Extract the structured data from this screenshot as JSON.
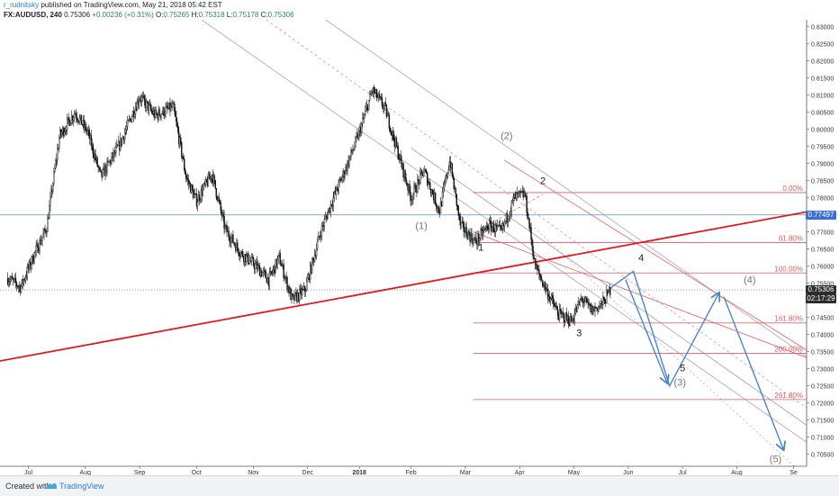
{
  "header": {
    "user": "r_rudnitsky",
    "published": "published on TradingView.com, May 21, 2018 05:42 EST",
    "symbol": "FX:AUDUSD, 240",
    "last": "0.75306",
    "change": "+0.00236 (+0.31%)",
    "o_label": "O:",
    "o": "0.75265",
    "h_label": "H:",
    "h": "0.75318",
    "l_label": "L:",
    "l": "0.75178",
    "c_label": "C:",
    "c": "0.75306"
  },
  "footer": {
    "created_with": "Created with",
    "brand": "TradingView"
  },
  "colors": {
    "candle": "#111111",
    "trend_red": "#e0191e",
    "fib": "#e05a66",
    "channel_gray": "#a9a9a9",
    "channel_dashed": "#c0a0a8",
    "wave_arrow": "#4a86c8",
    "blue_line": "#5b8fd0",
    "tag_blue": "#3b6fd6",
    "tag_dark": "#2d2d2d"
  },
  "chart_data": {
    "type": "candlestick",
    "x_axis_labels": [
      "Jul",
      "Aug",
      "Sep",
      "Oct",
      "Nov",
      "Dec",
      "2018",
      "Feb",
      "Mar",
      "Apr",
      "May",
      "Jun",
      "Jul",
      "Aug",
      "Se"
    ],
    "y_axis_labels": [
      "0.83000",
      "0.82500",
      "0.82000",
      "0.81500",
      "0.81000",
      "0.80500",
      "0.80000",
      "0.79500",
      "0.79000",
      "0.78500",
      "0.78000",
      "0.77500",
      "0.77000",
      "0.76500",
      "0.76000",
      "0.75500",
      "0.75000",
      "0.74500",
      "0.74000",
      "0.73500",
      "0.73000",
      "0.72500",
      "0.72000",
      "0.71500",
      "0.71000",
      "0.70500"
    ],
    "ylim": [
      0.7015,
      0.832
    ],
    "price_path": [
      {
        "t": 0.0,
        "p": 0.7565
      },
      {
        "t": 0.5,
        "p": 0.7538
      },
      {
        "t": 1.0,
        "p": 0.763
      },
      {
        "t": 1.5,
        "p": 0.771
      },
      {
        "t": 2.0,
        "p": 0.798
      },
      {
        "t": 2.6,
        "p": 0.805
      },
      {
        "t": 3.1,
        "p": 0.799
      },
      {
        "t": 3.6,
        "p": 0.786
      },
      {
        "t": 4.3,
        "p": 0.795
      },
      {
        "t": 5.1,
        "p": 0.8095
      },
      {
        "t": 5.7,
        "p": 0.804
      },
      {
        "t": 6.4,
        "p": 0.8065
      },
      {
        "t": 6.9,
        "p": 0.786
      },
      {
        "t": 7.3,
        "p": 0.779
      },
      {
        "t": 7.9,
        "p": 0.787
      },
      {
        "t": 8.4,
        "p": 0.771
      },
      {
        "t": 9.0,
        "p": 0.764
      },
      {
        "t": 9.6,
        "p": 0.76
      },
      {
        "t": 10.1,
        "p": 0.756
      },
      {
        "t": 10.5,
        "p": 0.7625
      },
      {
        "t": 11.0,
        "p": 0.75
      },
      {
        "t": 11.5,
        "p": 0.753
      },
      {
        "t": 12.1,
        "p": 0.77
      },
      {
        "t": 12.6,
        "p": 0.78
      },
      {
        "t": 13.1,
        "p": 0.789
      },
      {
        "t": 13.6,
        "p": 0.799
      },
      {
        "t": 14.1,
        "p": 0.8115
      },
      {
        "t": 14.6,
        "p": 0.806
      },
      {
        "t": 15.1,
        "p": 0.793
      },
      {
        "t": 15.6,
        "p": 0.78
      },
      {
        "t": 16.1,
        "p": 0.788
      },
      {
        "t": 16.7,
        "p": 0.776
      },
      {
        "t": 17.1,
        "p": 0.791
      },
      {
        "t": 17.5,
        "p": 0.772
      },
      {
        "t": 18.1,
        "p": 0.767
      },
      {
        "t": 18.6,
        "p": 0.772
      },
      {
        "t": 19.1,
        "p": 0.77
      },
      {
        "t": 19.6,
        "p": 0.78
      },
      {
        "t": 20.0,
        "p": 0.781
      },
      {
        "t": 20.4,
        "p": 0.76
      },
      {
        "t": 20.9,
        "p": 0.752
      },
      {
        "t": 21.3,
        "p": 0.746
      },
      {
        "t": 21.8,
        "p": 0.744
      },
      {
        "t": 22.2,
        "p": 0.7505
      },
      {
        "t": 22.6,
        "p": 0.747
      },
      {
        "t": 23.0,
        "p": 0.749
      },
      {
        "t": 23.3,
        "p": 0.753
      }
    ],
    "fib_levels": [
      {
        "label": "0.00%",
        "price": 0.7815
      },
      {
        "label": "61.80%",
        "price": 0.7669
      },
      {
        "label": "100.00%",
        "price": 0.758
      },
      {
        "label": "161.80%",
        "price": 0.7434
      },
      {
        "label": "200.00%",
        "price": 0.7345
      },
      {
        "label": "261.80%",
        "price": 0.721
      }
    ],
    "wave_labels": [
      {
        "text": "(2)",
        "t": 19.3,
        "p": 0.7972,
        "gray": true
      },
      {
        "text": "(1)",
        "t": 16.0,
        "p": 0.7708,
        "gray": true
      },
      {
        "text": "2",
        "t": 20.7,
        "p": 0.784,
        "gray": false
      },
      {
        "text": "1",
        "t": 18.3,
        "p": 0.7645,
        "gray": false
      },
      {
        "text": "3",
        "t": 22.1,
        "p": 0.7395,
        "gray": false
      },
      {
        "text": "4",
        "t": 24.5,
        "p": 0.7615,
        "gray": false
      },
      {
        "text": "5",
        "t": 26.1,
        "p": 0.7293,
        "gray": false
      },
      {
        "text": "(3)",
        "t": 26.0,
        "p": 0.725,
        "gray": true
      },
      {
        "text": "(4)",
        "t": 28.7,
        "p": 0.755,
        "gray": true
      },
      {
        "text": "(5)",
        "t": 29.7,
        "p": 0.7027,
        "gray": true
      }
    ],
    "price_tags": [
      {
        "label": "0.77497",
        "price": 0.77497,
        "style": "blue"
      },
      {
        "label": "0.75306",
        "price": 0.75306,
        "style": "dark"
      },
      {
        "label": "02:17:29",
        "price": 0.75306,
        "style": "dark_sub"
      }
    ]
  }
}
